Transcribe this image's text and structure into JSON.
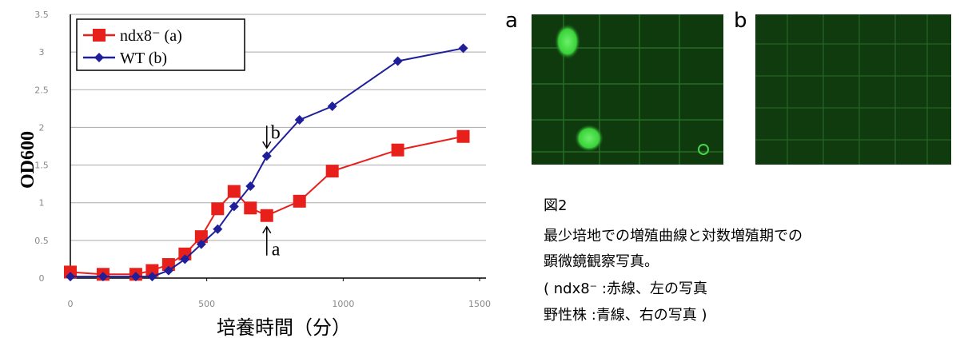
{
  "chart_data": {
    "type": "line",
    "x": [
      0,
      120,
      240,
      300,
      360,
      420,
      480,
      540,
      600,
      660,
      720,
      840,
      960,
      1200,
      1440
    ],
    "series": [
      {
        "name": "ndx8⁻ (a)",
        "color": "#e8201c",
        "marker": "square",
        "values": [
          0.08,
          0.05,
          0.05,
          0.1,
          0.18,
          0.32,
          0.55,
          0.92,
          1.15,
          0.93,
          0.83,
          1.02,
          1.42,
          1.7,
          1.88
        ]
      },
      {
        "name": "WT (b)",
        "color": "#1f1f9a",
        "marker": "diamond",
        "values": [
          0.02,
          0.02,
          0.02,
          0.02,
          0.1,
          0.25,
          0.45,
          0.65,
          0.95,
          1.22,
          1.62,
          2.1,
          2.28,
          2.88,
          3.05
        ]
      }
    ],
    "xlim": [
      0,
      1500
    ],
    "xticks": [
      0,
      500,
      1000,
      1500
    ],
    "ylim": [
      0,
      3.5
    ],
    "yticks": [
      0,
      0.5,
      1,
      1.5,
      2,
      2.5,
      3,
      3.5
    ],
    "grid": true,
    "xlabel": "培養時間（分）",
    "ylabel": "OD600",
    "annotations": [
      "b",
      "a"
    ]
  },
  "figure": {
    "panels": [
      "a",
      "b"
    ],
    "caption": [
      "図2",
      "最少培地での増殖曲線と対数増殖期での",
      "顕微鏡観察写真。",
      "( ndx8⁻ :赤線、左の写真",
      " 野性株 :青線、右の写真 )"
    ]
  }
}
